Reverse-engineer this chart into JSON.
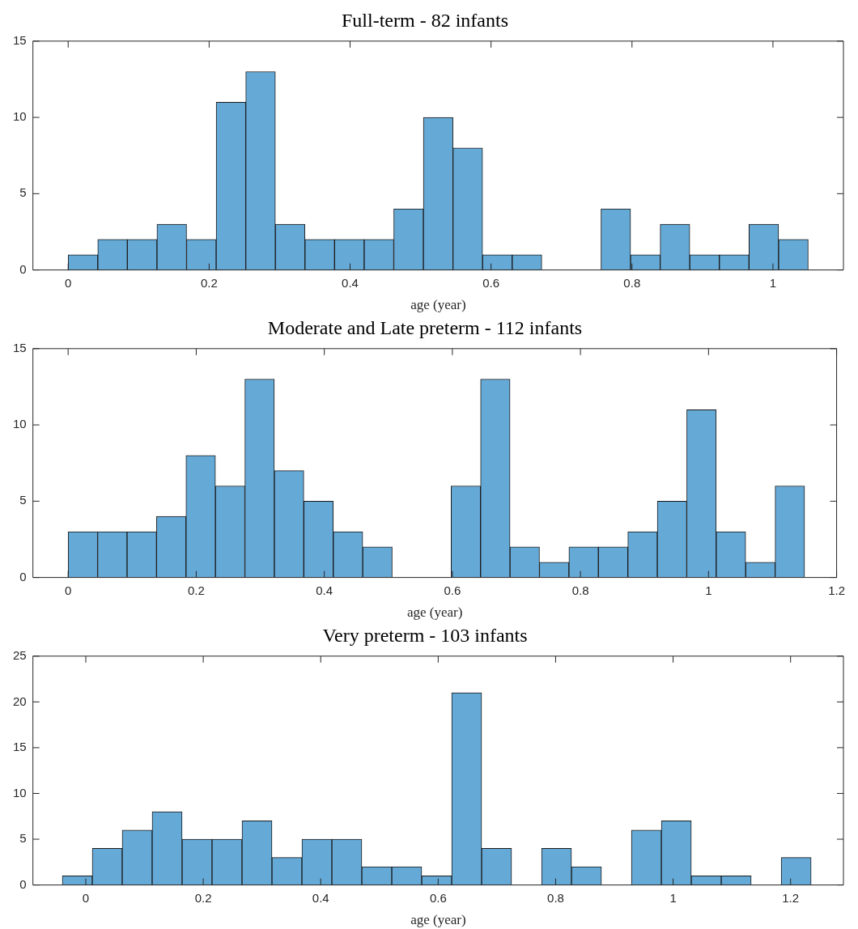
{
  "chart_data": [
    {
      "type": "histogram",
      "title": "Full-term - 82 infants",
      "xlabel": "age (year)",
      "color": "#65a9d7",
      "bins": [
        0,
        0.042,
        0.084,
        0.126,
        0.168,
        0.21,
        0.252,
        0.294,
        0.336,
        0.378,
        0.42,
        0.462,
        0.504,
        0.546,
        0.588,
        0.63,
        0.672,
        0.714,
        0.756,
        0.798,
        0.84,
        0.882,
        0.924,
        0.966,
        1.008,
        1.05
      ],
      "values": [
        1,
        2,
        2,
        3,
        2,
        11,
        13,
        3,
        2,
        2,
        2,
        4,
        10,
        8,
        1,
        1,
        0,
        0,
        4,
        1,
        3,
        1,
        1,
        3,
        2
      ],
      "xlim": [
        -0.05,
        1.1
      ],
      "xticks": [
        0,
        0.2,
        0.4,
        0.6,
        0.8,
        1
      ],
      "ylim": [
        0,
        15
      ],
      "yticks": [
        0,
        5,
        10,
        15
      ]
    },
    {
      "type": "histogram",
      "title": "Moderate and Late preterm - 112 infants",
      "xlabel": "age (year)",
      "color": "#65a9d7",
      "bins": [
        0,
        0.046,
        0.092,
        0.138,
        0.184,
        0.23,
        0.276,
        0.322,
        0.368,
        0.414,
        0.46,
        0.506,
        0.552,
        0.598,
        0.644,
        0.69,
        0.736,
        0.782,
        0.828,
        0.874,
        0.92,
        0.966,
        1.012,
        1.058,
        1.104,
        1.15
      ],
      "values": [
        3,
        3,
        3,
        4,
        8,
        6,
        13,
        7,
        5,
        3,
        2,
        0,
        0,
        6,
        13,
        2,
        1,
        2,
        2,
        3,
        5,
        11,
        3,
        1,
        6
      ],
      "xlim": [
        -0.055,
        1.2
      ],
      "xticks": [
        0,
        0.2,
        0.4,
        0.6,
        0.8,
        1,
        1.2
      ],
      "ylim": [
        0,
        15
      ],
      "yticks": [
        0,
        5,
        10,
        15
      ]
    },
    {
      "type": "histogram",
      "title": "Very preterm - 103 infants",
      "xlabel": "age (year)",
      "color": "#65a9d7",
      "bins": [
        -0.04,
        0.011,
        0.062,
        0.113,
        0.164,
        0.215,
        0.266,
        0.317,
        0.368,
        0.419,
        0.47,
        0.521,
        0.572,
        0.623,
        0.674,
        0.725,
        0.776,
        0.827,
        0.878,
        0.929,
        0.98,
        1.031,
        1.082,
        1.133,
        1.184,
        1.235
      ],
      "values": [
        1,
        4,
        6,
        8,
        5,
        5,
        7,
        3,
        5,
        5,
        2,
        2,
        1,
        21,
        4,
        0,
        4,
        2,
        0,
        6,
        7,
        1,
        1,
        0,
        3
      ],
      "xlim": [
        -0.09,
        1.29
      ],
      "xticks": [
        0,
        0.2,
        0.4,
        0.6,
        0.8,
        1,
        1.2
      ],
      "ylim": [
        0,
        25
      ],
      "yticks": [
        0,
        5,
        10,
        15,
        20,
        25
      ]
    }
  ]
}
